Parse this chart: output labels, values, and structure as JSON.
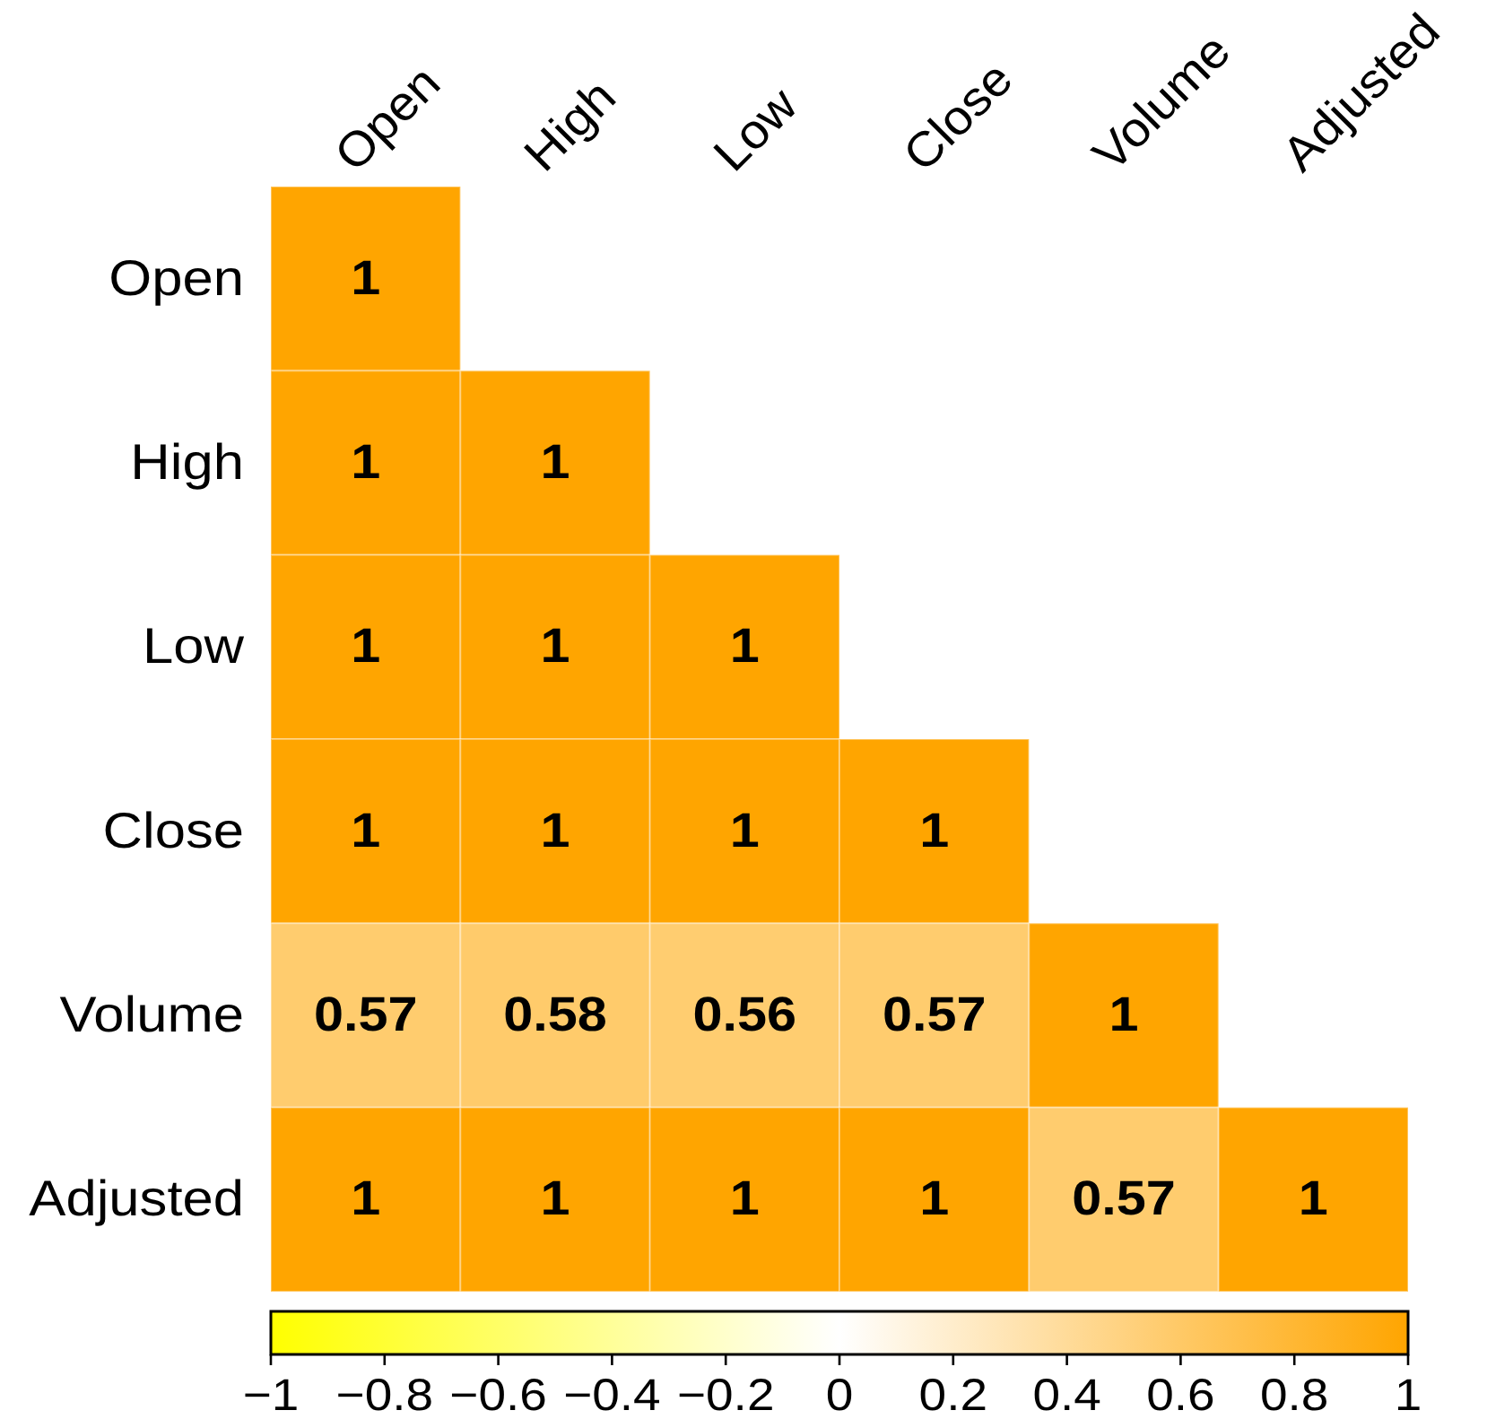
{
  "chart_data": {
    "type": "heatmap",
    "categories": [
      "Open",
      "High",
      "Low",
      "Close",
      "Volume",
      "Adjusted"
    ],
    "y_categories": [
      "Open",
      "High",
      "Low",
      "Close",
      "Volume",
      "Adjusted"
    ],
    "cells": [
      [
        1,
        null,
        null,
        null,
        null,
        null
      ],
      [
        1,
        1,
        null,
        null,
        null,
        null
      ],
      [
        1,
        1,
        1,
        null,
        null,
        null
      ],
      [
        1,
        1,
        1,
        1,
        null,
        null
      ],
      [
        0.57,
        0.58,
        0.56,
        0.57,
        1,
        null
      ],
      [
        1,
        1,
        1,
        1,
        0.57,
        1
      ]
    ],
    "clim": [
      -1,
      1
    ],
    "cticks": [
      {
        "value": -1,
        "label": "−1"
      },
      {
        "value": -0.8,
        "label": "−0.8"
      },
      {
        "value": -0.6,
        "label": "−0.6"
      },
      {
        "value": -0.4,
        "label": "−0.4"
      },
      {
        "value": -0.2,
        "label": "−0.2"
      },
      0,
      0.2,
      0.4,
      0.6,
      0.8,
      1
    ],
    "data_labels": true
  }
}
